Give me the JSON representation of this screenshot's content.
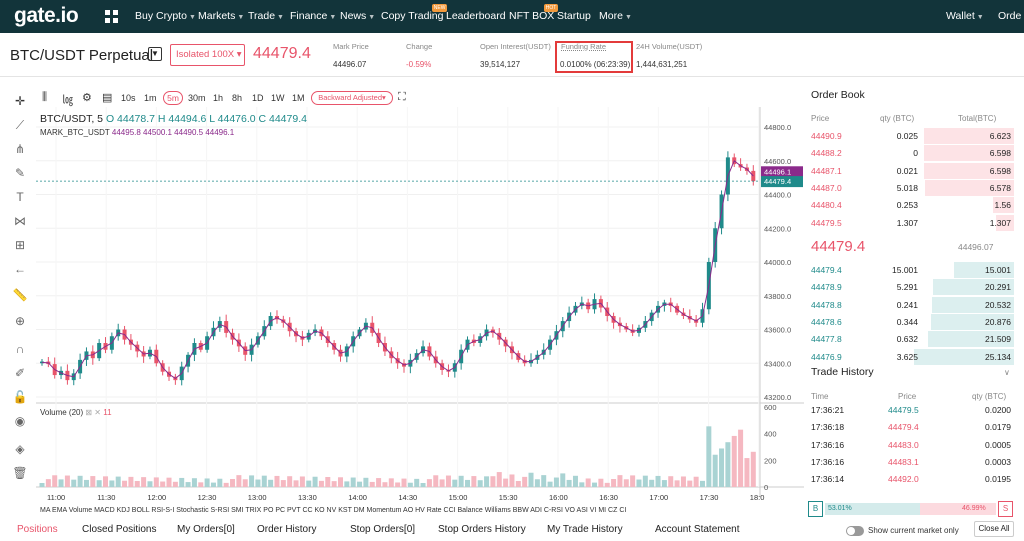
{
  "nav": {
    "logo": "gate.io",
    "items": [
      "Buy Crypto",
      "Markets",
      "Trade",
      "Finance",
      "News",
      "Copy Trading",
      "Leaderboard",
      "NFT BOX",
      "Startup",
      "More"
    ],
    "copy_badge": "NEW",
    "nft_badge": "HOT",
    "wallet": "Wallet",
    "order": "Orde"
  },
  "header": {
    "pair": "BTC/USDT Perpetual",
    "mode": "Isolated 100X",
    "last_price": "44479.4",
    "stats": [
      {
        "label": "Mark Price",
        "value": "44496.07"
      },
      {
        "label": "Change",
        "value": "-0.59%"
      },
      {
        "label": "Open Interest(USDT)",
        "value": "39,514,127"
      },
      {
        "label": "Funding Rate",
        "value": "0.0100% (06:23:39)"
      },
      {
        "label": "24H Volume(USDT)",
        "value": "1,444,631,251"
      }
    ]
  },
  "toolbar": {
    "timeframes": [
      "10s",
      "1m",
      "5m",
      "30m",
      "1h",
      "8h",
      "1D",
      "1W",
      "1M"
    ],
    "selected": "5m",
    "adjust": "Backward Adjusted"
  },
  "chart": {
    "symbol": "BTC/USDT, 5",
    "ohlc": "O 44478.7  H 44494.6  L 44476.0  C 44479.4",
    "mark": "MARK_BTC_USDT",
    "mark_values": "44495.8  44500.1  44490.5  44496.1",
    "volume_label": "Volume (20)",
    "volume_value": "11",
    "price_ticks": [
      "44800.0",
      "44600.0",
      "44400.0",
      "44200.0",
      "44000.0",
      "43800.0",
      "43600.0",
      "43400.0",
      "43200.0"
    ],
    "vol_ticks": [
      "600",
      "400",
      "200",
      "0"
    ],
    "time_ticks": [
      "11:00",
      "11:30",
      "12:00",
      "12:30",
      "13:00",
      "13:30",
      "14:00",
      "14:30",
      "15:00",
      "15:30",
      "16:00",
      "16:30",
      "17:00",
      "17:30",
      "18:0"
    ],
    "mark_tag": "44496.1",
    "last_tag": "44479.4",
    "indicators": "MA  EMA  Volume  MACD  KDJ  BOLL  RSI-S-I  Stochastic  S-RSI  SMI  TRIX  PO  PC  PVT  CC  KO  NV  KST  DM  Momentum  AO  HV  Rate  CCI  Balance  Williams  BBW  ADI  C-RSI  VO  ASI  VI  MI  CZ  CI"
  },
  "bottom_tabs": [
    "Positions",
    "Closed Positions",
    "My Orders[0]",
    "Order History",
    "Stop Orders[0]",
    "Stop Orders History",
    "My Trade History",
    "Account Statement"
  ],
  "orderbook": {
    "title": "Order Book",
    "cols": [
      "Price",
      "qty (BTC)",
      "Total(BTC)"
    ],
    "asks": [
      [
        "44490.9",
        "0.025",
        "6.623"
      ],
      [
        "44488.2",
        "0",
        "6.598"
      ],
      [
        "44487.1",
        "0.021",
        "6.598"
      ],
      [
        "44487.0",
        "5.018",
        "6.578"
      ],
      [
        "44480.4",
        "0.253",
        "1.56"
      ],
      [
        "44479.5",
        "1.307",
        "1.307"
      ]
    ],
    "mid": "44479.4",
    "mid_mark": "44496.07",
    "bids": [
      [
        "44479.4",
        "15.001",
        "15.001"
      ],
      [
        "44478.9",
        "5.291",
        "20.291"
      ],
      [
        "44478.8",
        "0.241",
        "20.532"
      ],
      [
        "44478.6",
        "0.344",
        "20.876"
      ],
      [
        "44477.8",
        "0.632",
        "21.509"
      ],
      [
        "44476.9",
        "3.625",
        "25.134"
      ]
    ]
  },
  "trades": {
    "title": "Trade History",
    "cols": [
      "Time",
      "Price",
      "qty (BTC)"
    ],
    "rows": [
      [
        "17:36:21",
        "44479.5",
        "0.0200",
        "g"
      ],
      [
        "17:36:18",
        "44479.4",
        "0.0179",
        "r"
      ],
      [
        "17:36:16",
        "44483.0",
        "0.0005",
        "r"
      ],
      [
        "17:36:16",
        "44483.1",
        "0.0003",
        "r"
      ],
      [
        "17:36:14",
        "44492.0",
        "0.0195",
        "r"
      ]
    ]
  },
  "ratio": {
    "buy": "53.01%",
    "sell": "46.99%",
    "b": "B",
    "s": "S"
  },
  "show_current": "Show current market only",
  "close_all": "Close All",
  "colors": {
    "up": "#1f8a8a",
    "down": "#e8546a",
    "nav": "#12343a"
  }
}
